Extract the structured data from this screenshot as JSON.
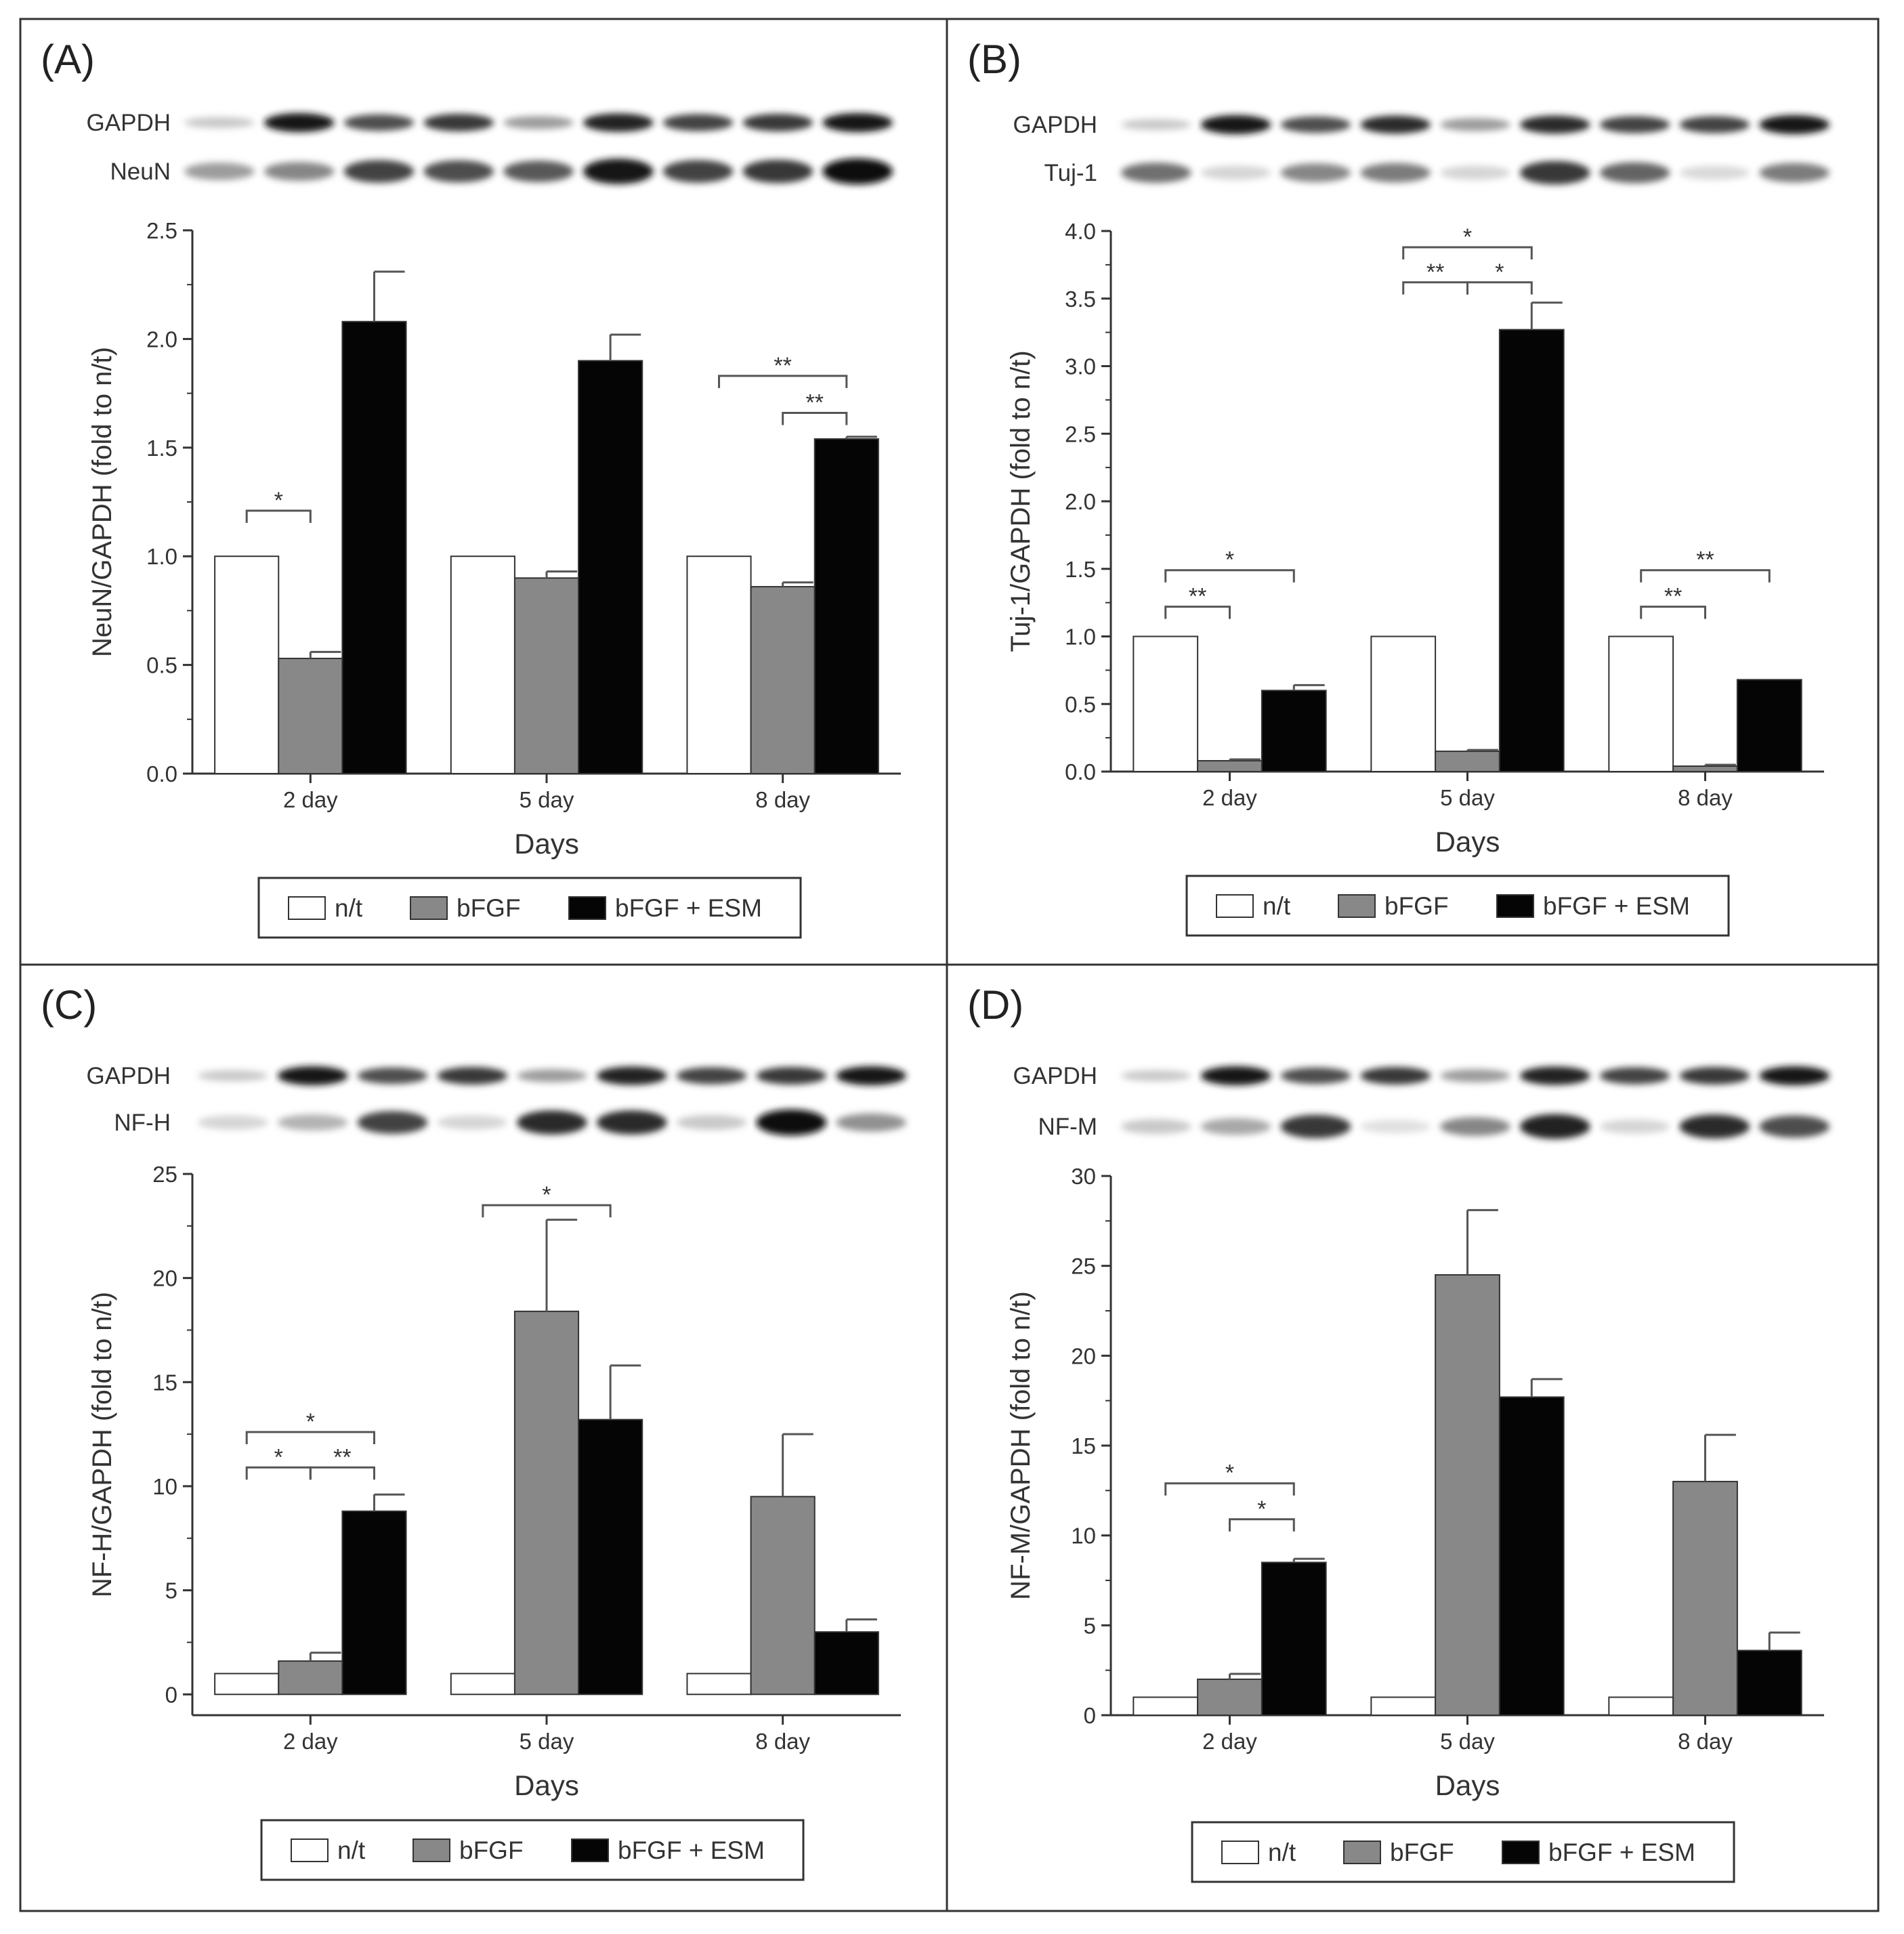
{
  "figure": {
    "legend_labels": [
      "n/t",
      "bFGF",
      "bFGF + ESM"
    ],
    "colors": {
      "n/t": "#ffffff",
      "bFGF": "#888888",
      "bFGF + ESM": "#050505"
    },
    "blots": {
      "A": {
        "top_label": "GAPDH",
        "bottom_label": "NeuN",
        "top_intensity": [
          0.15,
          0.95,
          0.7,
          0.8,
          0.35,
          0.9,
          0.75,
          0.8,
          0.95
        ],
        "bottom_intensity": [
          0.35,
          0.45,
          0.75,
          0.7,
          0.65,
          0.95,
          0.75,
          0.8,
          1.0
        ]
      },
      "B": {
        "top_label": "GAPDH",
        "bottom_label": "Tuj-1",
        "top_intensity": [
          0.15,
          0.95,
          0.7,
          0.85,
          0.35,
          0.85,
          0.75,
          0.75,
          0.95
        ],
        "bottom_intensity": [
          0.55,
          0.1,
          0.45,
          0.5,
          0.1,
          0.8,
          0.6,
          0.08,
          0.5
        ]
      },
      "C": {
        "top_label": "GAPDH",
        "bottom_label": "NF-H",
        "top_intensity": [
          0.15,
          0.95,
          0.7,
          0.8,
          0.35,
          0.9,
          0.75,
          0.8,
          0.95
        ],
        "bottom_intensity": [
          0.1,
          0.25,
          0.75,
          0.1,
          0.85,
          0.85,
          0.15,
          1.0,
          0.4
        ]
      },
      "D": {
        "top_label": "GAPDH",
        "bottom_label": "NF-M",
        "top_intensity": [
          0.15,
          0.95,
          0.7,
          0.8,
          0.35,
          0.9,
          0.75,
          0.8,
          0.95
        ],
        "bottom_intensity": [
          0.15,
          0.3,
          0.8,
          0.05,
          0.45,
          0.9,
          0.1,
          0.85,
          0.7
        ]
      }
    }
  },
  "chart_data": [
    {
      "panel": "(A)",
      "type": "bar",
      "categories": [
        "2 day",
        "5 day",
        "8 day"
      ],
      "series": [
        {
          "name": "n/t",
          "values": [
            1.0,
            1.0,
            1.0
          ],
          "errors": [
            0,
            0,
            0
          ]
        },
        {
          "name": "bFGF",
          "values": [
            0.53,
            0.9,
            0.86
          ],
          "errors": [
            0.03,
            0.03,
            0.02
          ]
        },
        {
          "name": "bFGF + ESM",
          "values": [
            2.08,
            1.9,
            1.54
          ],
          "errors": [
            0.23,
            0.12,
            0.01
          ]
        }
      ],
      "xlabel": "Days",
      "ylabel": "NeuN/GAPDH (fold to n/t)",
      "ylim": [
        0,
        2.5
      ],
      "yticks": [
        "0.0",
        "0.5",
        "1.0",
        "1.5",
        "2.0",
        "2.5"
      ],
      "significance": [
        {
          "category": 0,
          "from": 0,
          "to": 1,
          "at": 1.21,
          "label": "*"
        },
        {
          "category": 2,
          "from": 0,
          "to": 2,
          "at": 1.83,
          "label": "**"
        },
        {
          "category": 2,
          "from": 1,
          "to": 2,
          "at": 1.66,
          "label": "**"
        }
      ]
    },
    {
      "panel": "(B)",
      "type": "bar",
      "categories": [
        "2 day",
        "5 day",
        "8 day"
      ],
      "series": [
        {
          "name": "n/t",
          "values": [
            1.0,
            1.0,
            1.0
          ],
          "errors": [
            0,
            0,
            0
          ]
        },
        {
          "name": "bFGF",
          "values": [
            0.08,
            0.15,
            0.04
          ],
          "errors": [
            0.01,
            0.01,
            0.01
          ]
        },
        {
          "name": "bFGF + ESM",
          "values": [
            0.6,
            3.27,
            0.68
          ],
          "errors": [
            0.04,
            0.2,
            0
          ]
        }
      ],
      "xlabel": "Days",
      "ylabel": "Tuj-1/GAPDH (fold to n/t)",
      "ylim": [
        0,
        4.0
      ],
      "yticks": [
        "0.0",
        "0.5",
        "1.0",
        "1.5",
        "2.0",
        "2.5",
        "3.0",
        "3.5",
        "4.0"
      ],
      "significance": [
        {
          "category": 0,
          "from": 0,
          "to": 2,
          "at": 1.49,
          "label": "*"
        },
        {
          "category": 0,
          "from": 0,
          "to": 1,
          "at": 1.22,
          "label": "**"
        },
        {
          "category": 1,
          "from": 0,
          "to": 2,
          "at": 3.88,
          "label": "*"
        },
        {
          "category": 1,
          "from": 0,
          "to": 1,
          "at": 3.62,
          "label": "**"
        },
        {
          "category": 1,
          "from": 1,
          "to": 2,
          "at": 3.62,
          "label": "*"
        },
        {
          "category": 2,
          "from": 0,
          "to": 2,
          "at": 1.49,
          "label": "**"
        },
        {
          "category": 2,
          "from": 0,
          "to": 1,
          "at": 1.22,
          "label": "**"
        }
      ]
    },
    {
      "panel": "(C)",
      "type": "bar",
      "categories": [
        "2 day",
        "5 day",
        "8 day"
      ],
      "series": [
        {
          "name": "n/t",
          "values": [
            1.0,
            1.0,
            1.0
          ],
          "errors": [
            0,
            0,
            0
          ]
        },
        {
          "name": "bFGF",
          "values": [
            1.6,
            18.4,
            9.5
          ],
          "errors": [
            0.4,
            4.4,
            3.0
          ]
        },
        {
          "name": "bFGF + ESM",
          "values": [
            8.8,
            13.2,
            3.0
          ],
          "errors": [
            0.8,
            2.6,
            0.6
          ]
        }
      ],
      "xlabel": "Days",
      "ylabel": "NF-H/GAPDH (fold to n/t)",
      "ylim": [
        -1,
        25
      ],
      "yticks": [
        "0",
        "5",
        "10",
        "15",
        "20",
        "25"
      ],
      "significance": [
        {
          "category": 0,
          "from": 0,
          "to": 2,
          "at": 12.6,
          "label": "*"
        },
        {
          "category": 0,
          "from": 0,
          "to": 1,
          "at": 10.9,
          "label": "*"
        },
        {
          "category": 0,
          "from": 1,
          "to": 2,
          "at": 10.9,
          "label": "**"
        },
        {
          "category": 1,
          "from": 0,
          "to": 2,
          "at": 23.5,
          "label": "*"
        }
      ]
    },
    {
      "panel": "(D)",
      "type": "bar",
      "categories": [
        "2 day",
        "5 day",
        "8 day"
      ],
      "series": [
        {
          "name": "n/t",
          "values": [
            1.0,
            1.0,
            1.0
          ],
          "errors": [
            0,
            0,
            0
          ]
        },
        {
          "name": "bFGF",
          "values": [
            2.0,
            24.5,
            13.0
          ],
          "errors": [
            0.3,
            3.6,
            2.6
          ]
        },
        {
          "name": "bFGF + ESM",
          "values": [
            8.5,
            17.7,
            3.6
          ],
          "errors": [
            0.2,
            1.0,
            1.0
          ]
        }
      ],
      "xlabel": "Days",
      "ylabel": "NF-M/GAPDH (fold to n/t)",
      "ylim": [
        0,
        30
      ],
      "yticks": [
        "0",
        "5",
        "10",
        "15",
        "20",
        "25",
        "30"
      ],
      "significance": [
        {
          "category": 0,
          "from": 0,
          "to": 2,
          "at": 12.9,
          "label": "*"
        },
        {
          "category": 0,
          "from": 1,
          "to": 2,
          "at": 10.9,
          "label": "*"
        }
      ]
    }
  ]
}
